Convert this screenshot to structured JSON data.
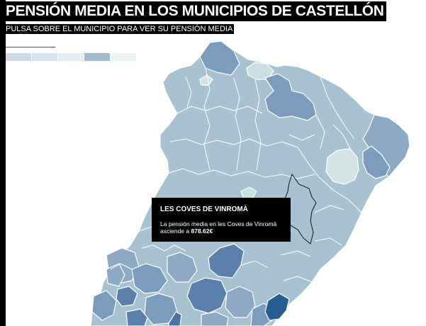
{
  "header": {
    "title": "PENSIÓN MEDIA EN LOS MUNICIPIOS DE CASTELLÓN",
    "subtitle": "PULSA SOBRE EL MUNICIPIO PARA VER SU PENSIÓN MEDIA"
  },
  "legend": {
    "colors": [
      "#cfdbe4",
      "#d9e3ea",
      "#e6edf2",
      "#a4bccd",
      "#eef5f4"
    ]
  },
  "map": {
    "colors": {
      "border": "#ffffff",
      "light": "#d4e3e3",
      "pale": "#c9dfe0",
      "base": "#a9c2d2",
      "mid": "#8ea9c3",
      "midDark": "#7b9cbd",
      "dark": "#5a80ab",
      "darker": "#4b74a4",
      "darkest": "#265d93"
    },
    "highlighted_municipality": "LES COVES DE VINROMÀ"
  },
  "tooltip": {
    "title": "LES COVES DE VINROMÀ",
    "text_before": "La pensión media en les Coves de Vinromà asciende a ",
    "value": "878.62€"
  }
}
